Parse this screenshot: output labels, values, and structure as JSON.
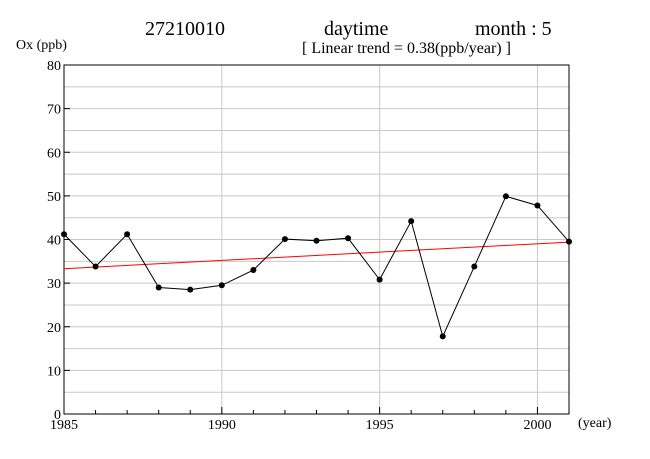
{
  "header": {
    "station": "27210010",
    "period": "daytime",
    "month": "month : 5",
    "trend": "[ Linear trend = 0.38(ppb/year) ]"
  },
  "chart_data": {
    "type": "line",
    "ylabel": "Ox (ppb)",
    "xunit": "(year)",
    "xlim": [
      1985,
      2001
    ],
    "ylim": [
      0,
      80
    ],
    "xticks": [
      1985,
      1990,
      1995,
      2000
    ],
    "yticks": [
      0,
      10,
      20,
      30,
      40,
      50,
      60,
      70,
      80
    ],
    "grid": true,
    "series": [
      {
        "x": [
          1985,
          1986,
          1987,
          1988,
          1989,
          1990,
          1991,
          1992,
          1993,
          1994,
          1995,
          1996,
          1997,
          1998,
          1999,
          2000,
          2001
        ],
        "values": [
          41.2,
          33.8,
          41.2,
          29.0,
          28.5,
          29.5,
          33.0,
          40.1,
          39.7,
          40.3,
          30.8,
          44.2,
          17.8,
          33.8,
          49.9,
          47.8,
          39.5
        ],
        "color": "#000000"
      }
    ],
    "trend_line": {
      "x": [
        1985,
        2001
      ],
      "values": [
        33.3,
        39.4
      ],
      "color": "#ff0000"
    }
  }
}
